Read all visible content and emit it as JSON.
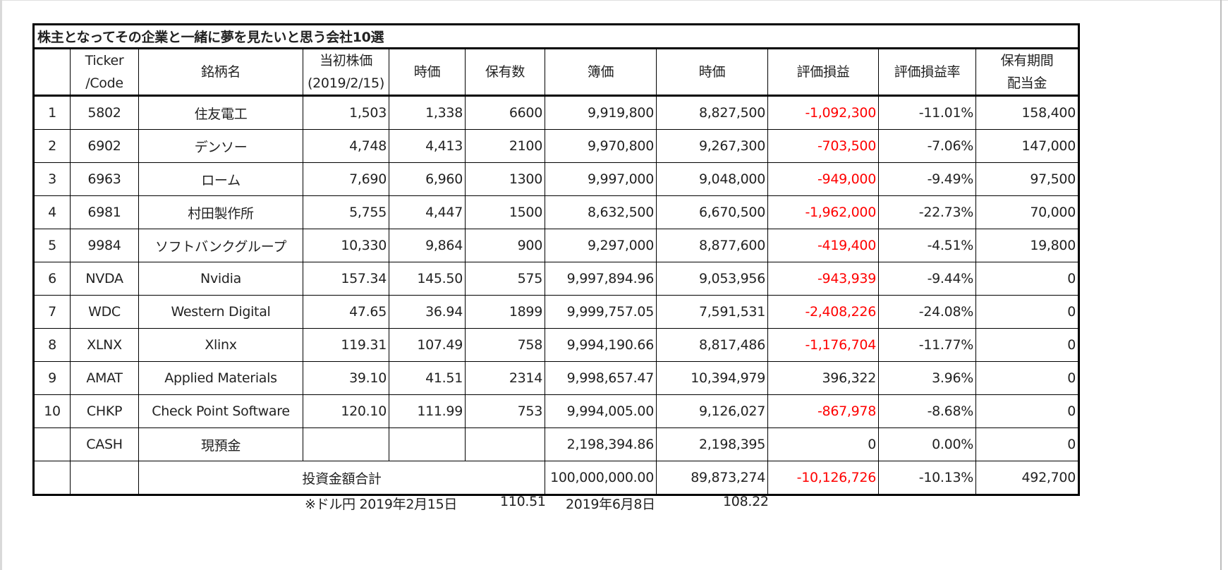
{
  "title": "株主となってその企業と一緒に夢を見たいと思う会社10選",
  "headers": {
    "no": "",
    "ticker_line1": "Ticker",
    "ticker_line2": "/Code",
    "name": "銘柄名",
    "initial_price_line1": "当初株価",
    "initial_price_line2": "(2019/2/15)",
    "current_price": "時価",
    "shares": "保有数",
    "book_value": "簿価",
    "market_value": "時価",
    "unrealized_pl": "評価損益",
    "unrealized_pl_rate": "評価損益率",
    "dividend_line1": "保有期間",
    "dividend_line2": "配当金"
  },
  "rows": [
    {
      "no": "1",
      "ticker": "5802",
      "name": "住友電工",
      "initial_price": "1,503",
      "current_price": "1,338",
      "shares": "6600",
      "book_value": "9,919,800",
      "market_value": "8,827,500",
      "pl": "-1,092,300",
      "pl_rate": "-11.01%",
      "dividend": "158,400"
    },
    {
      "no": "2",
      "ticker": "6902",
      "name": "デンソー",
      "initial_price": "4,748",
      "current_price": "4,413",
      "shares": "2100",
      "book_value": "9,970,800",
      "market_value": "9,267,300",
      "pl": "-703,500",
      "pl_rate": "-7.06%",
      "dividend": "147,000"
    },
    {
      "no": "3",
      "ticker": "6963",
      "name": "ローム",
      "initial_price": "7,690",
      "current_price": "6,960",
      "shares": "1300",
      "book_value": "9,997,000",
      "market_value": "9,048,000",
      "pl": "-949,000",
      "pl_rate": "-9.49%",
      "dividend": "97,500"
    },
    {
      "no": "4",
      "ticker": "6981",
      "name": "村田製作所",
      "initial_price": "5,755",
      "current_price": "4,447",
      "shares": "1500",
      "book_value": "8,632,500",
      "market_value": "6,670,500",
      "pl": "-1,962,000",
      "pl_rate": "-22.73%",
      "dividend": "70,000"
    },
    {
      "no": "5",
      "ticker": "9984",
      "name": "ソフトバンクグループ",
      "initial_price": "10,330",
      "current_price": "9,864",
      "shares": "900",
      "book_value": "9,297,000",
      "market_value": "8,877,600",
      "pl": "-419,400",
      "pl_rate": "-4.51%",
      "dividend": "19,800"
    },
    {
      "no": "6",
      "ticker": "NVDA",
      "name": "Nvidia",
      "initial_price": "157.34",
      "current_price": "145.50",
      "shares": "575",
      "book_value": "9,997,894.96",
      "market_value": "9,053,956",
      "pl": "-943,939",
      "pl_rate": "-9.44%",
      "dividend": "0"
    },
    {
      "no": "7",
      "ticker": "WDC",
      "name": "Western Digital",
      "initial_price": "47.65",
      "current_price": "36.94",
      "shares": "1899",
      "book_value": "9,999,757.05",
      "market_value": "7,591,531",
      "pl": "-2,408,226",
      "pl_rate": "-24.08%",
      "dividend": "0"
    },
    {
      "no": "8",
      "ticker": "XLNX",
      "name": "Xlinx",
      "initial_price": "119.31",
      "current_price": "107.49",
      "shares": "758",
      "book_value": "9,994,190.66",
      "market_value": "8,817,486",
      "pl": "-1,176,704",
      "pl_rate": "-11.77%",
      "dividend": "0"
    },
    {
      "no": "9",
      "ticker": "AMAT",
      "name": "Applied Materials",
      "initial_price": "39.10",
      "current_price": "41.51",
      "shares": "2314",
      "book_value": "9,998,657.47",
      "market_value": "10,394,979",
      "pl": "396,322",
      "pl_rate": "3.96%",
      "dividend": "0"
    },
    {
      "no": "10",
      "ticker": "CHKP",
      "name": "Check Point Software",
      "initial_price": "120.10",
      "current_price": "111.99",
      "shares": "753",
      "book_value": "9,994,005.00",
      "market_value": "9,126,027",
      "pl": "-867,978",
      "pl_rate": "-8.68%",
      "dividend": "0"
    },
    {
      "no": "",
      "ticker": "CASH",
      "name": "現預金",
      "initial_price": "",
      "current_price": "",
      "shares": "",
      "book_value": "2,198,394.86",
      "market_value": "2,198,395",
      "pl": "0",
      "pl_rate": "0.00%",
      "dividend": "0"
    }
  ],
  "total": {
    "label": "投資金額合計",
    "book_value": "100,000,000.00",
    "market_value": "89,873,274",
    "pl": "-10,126,726",
    "pl_rate": "-10.13%",
    "dividend": "492,700"
  },
  "fx_note": {
    "label": "※ドル円 2019年2月15日",
    "rate1": "110.51",
    "date2": "2019年6月8日",
    "rate2": "108.22"
  },
  "colors": {
    "negative": "#ff0000",
    "text": "#222222",
    "border": "#000000"
  }
}
